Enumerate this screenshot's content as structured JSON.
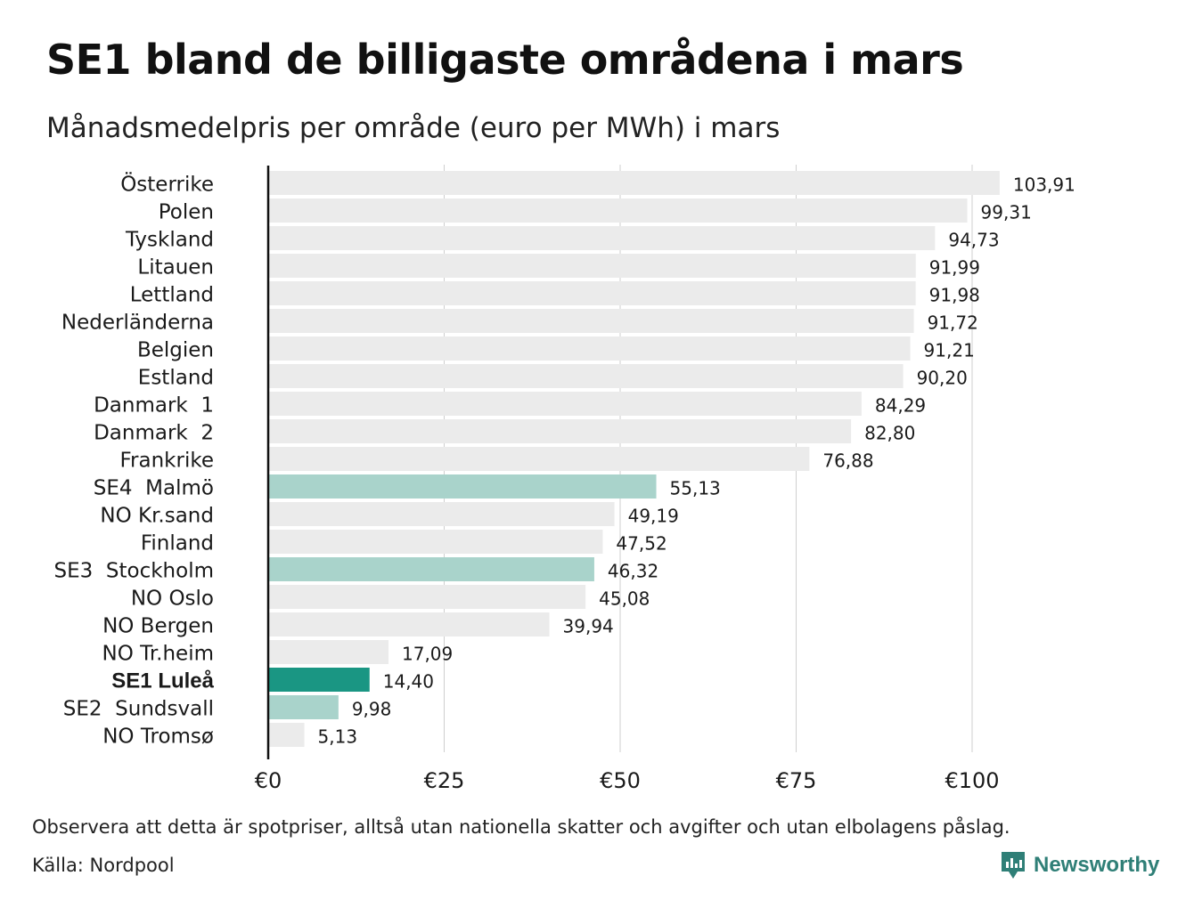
{
  "title": "SE1 bland de billigaste områdena i mars",
  "subtitle": "Månadsmedelpris per område (euro per MWh) i mars",
  "footnote": "Observera att detta är spotpriser, alltså utan nationella skatter och avgifter och utan elbolagens påslag.",
  "source": "Källa: Nordpool",
  "logo": {
    "text": "Newsworthy"
  },
  "colors": {
    "default_bar": "#ebebeb",
    "se_bar": "#a9d3cb",
    "highlight_bar": "#1a9683",
    "gridline": "#cfcfcf",
    "axis": "#111111",
    "logo": "#2f7f77"
  },
  "chart_data": {
    "type": "bar",
    "orientation": "horizontal",
    "categories": [
      "Österrike",
      "Polen",
      "Tyskland",
      "Litauen",
      "Lettland",
      "Nederländerna",
      "Belgien",
      "Estland",
      "Danmark  1",
      "Danmark  2",
      "Frankrike",
      "SE4  Malmö",
      "NO Kr.sand",
      "Finland",
      "SE3  Stockholm",
      "NO Oslo",
      "NO Bergen",
      "NO Tr.heim",
      "SE1 Luleå",
      "SE2  Sundsvall",
      "NO Tromsø"
    ],
    "values": [
      103.91,
      99.31,
      94.73,
      91.99,
      91.98,
      91.72,
      91.21,
      90.2,
      84.29,
      82.8,
      76.88,
      55.13,
      49.19,
      47.52,
      46.32,
      45.08,
      39.94,
      17.09,
      14.4,
      9.98,
      5.13
    ],
    "value_labels": [
      "103,91",
      "99,31",
      "94,73",
      "91,99",
      "91,98",
      "91,72",
      "91,21",
      "90,20",
      "84,29",
      "82,80",
      "76,88",
      "55,13",
      "49,19",
      "47,52",
      "46,32",
      "45,08",
      "39,94",
      "17,09",
      "14,40",
      "9,98",
      "5,13"
    ],
    "bar_style": [
      "default",
      "default",
      "default",
      "default",
      "default",
      "default",
      "default",
      "default",
      "default",
      "default",
      "default",
      "se",
      "default",
      "default",
      "se",
      "default",
      "default",
      "default",
      "highlight",
      "se",
      "default"
    ],
    "xticks": [
      0,
      25,
      50,
      75,
      100
    ],
    "xtick_labels": [
      "€0",
      "€25",
      "€50",
      "€75",
      "€100"
    ],
    "xlim": [
      0,
      105
    ],
    "grid": "vertical"
  }
}
